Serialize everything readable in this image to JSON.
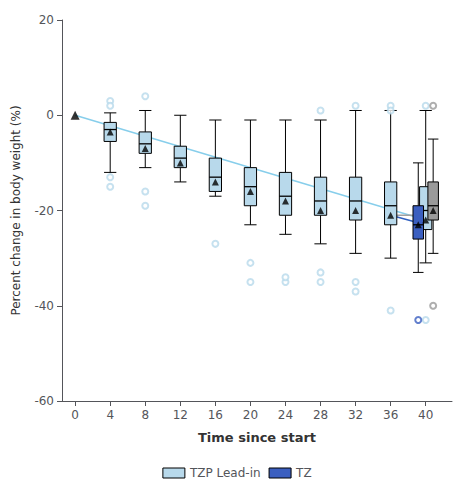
{
  "chart_data": {
    "type": "boxplot",
    "xlabel": "Time since start",
    "ylabel": "Percent change in body weight (%)",
    "xlim": [
      -1.5,
      43
    ],
    "xticks": [
      0,
      4,
      8,
      12,
      16,
      20,
      24,
      28,
      32,
      36,
      40
    ],
    "ylim": [
      -60,
      20
    ],
    "yticks": [
      -60,
      -40,
      -20,
      0,
      20
    ],
    "grid": false,
    "legend": "bottom",
    "series": [
      {
        "name": "TZP Lead-in",
        "color": "#b8d9eb",
        "boxes": [
          {
            "x": 4,
            "q1": -5.5,
            "median": -3,
            "q3": -1.5,
            "whislo": -12,
            "whishi": 0.5,
            "fliers_high": [
              3,
              2
            ],
            "fliers_low": [
              -13,
              -15
            ],
            "mean": -3.5
          },
          {
            "x": 8,
            "q1": -8,
            "median": -6,
            "q3": -3.5,
            "whislo": -11,
            "whishi": 1,
            "fliers_high": [
              4
            ],
            "fliers_low": [
              -16,
              -19
            ],
            "mean": -7
          },
          {
            "x": 12,
            "q1": -11,
            "median": -9,
            "q3": -6.5,
            "whislo": -14,
            "whishi": 0,
            "fliers_high": [],
            "fliers_low": [],
            "mean": -10
          },
          {
            "x": 16,
            "q1": -16,
            "median": -13,
            "q3": -9,
            "whislo": -17,
            "whishi": -1,
            "fliers_high": [],
            "fliers_low": [
              -27
            ],
            "mean": -14
          },
          {
            "x": 20,
            "q1": -19,
            "median": -15,
            "q3": -11,
            "whislo": -23,
            "whishi": -1,
            "fliers_high": [],
            "fliers_low": [
              -31,
              -35
            ],
            "mean": -16
          },
          {
            "x": 24,
            "q1": -21,
            "median": -17,
            "q3": -12,
            "whislo": -25,
            "whishi": -1,
            "fliers_high": [],
            "fliers_low": [
              -35,
              -34
            ],
            "mean": -18
          },
          {
            "x": 28,
            "q1": -21,
            "median": -18,
            "q3": -13,
            "whislo": -27,
            "whishi": -1,
            "fliers_high": [
              1
            ],
            "fliers_low": [
              -35,
              -33
            ],
            "mean": -20
          },
          {
            "x": 32,
            "q1": -22,
            "median": -18,
            "q3": -13,
            "whislo": -29,
            "whishi": 1,
            "fliers_high": [
              2
            ],
            "fliers_low": [
              -37,
              -35
            ],
            "mean": -20
          },
          {
            "x": 36,
            "q1": -23,
            "median": -19,
            "q3": -14,
            "whislo": -30,
            "whishi": 1,
            "fliers_high": [
              2,
              1
            ],
            "fliers_low": [
              -41
            ],
            "mean": -21
          },
          {
            "x": 40,
            "q1": -24,
            "median": -20,
            "q3": -15,
            "whislo": -31,
            "whishi": 1,
            "fliers_high": [
              2
            ],
            "fliers_low": [
              -43
            ],
            "mean": -22
          }
        ]
      },
      {
        "name": "TZ",
        "color": "#3b5fc0",
        "boxes": [
          {
            "x": 40,
            "q1": -26,
            "median": -23,
            "q3": -19,
            "whislo": -33,
            "whishi": -10,
            "fliers_high": [],
            "fliers_low": [
              -43
            ],
            "mean": -23
          }
        ]
      },
      {
        "color": "#9a9a9a",
        "boxes": [
          {
            "x": 40,
            "q1": -22,
            "median": -19,
            "q3": -14,
            "whislo": -29,
            "whishi": -5,
            "fliers_high": [
              2
            ],
            "fliers_low": [
              -40
            ],
            "mean": -20
          }
        ]
      }
    ],
    "trend_lines": [
      {
        "color": "#87ceeb",
        "x": [
          0,
          40
        ],
        "y": [
          0,
          -22
        ]
      },
      {
        "color": "#3060c0",
        "x": [
          36,
          40
        ],
        "y": [
          -21,
          -23
        ]
      },
      {
        "color": "#a0a0a0",
        "x": [
          36,
          41
        ],
        "y": [
          -21,
          -21
        ]
      }
    ],
    "baseline": {
      "x": 0,
      "y": 0
    }
  }
}
